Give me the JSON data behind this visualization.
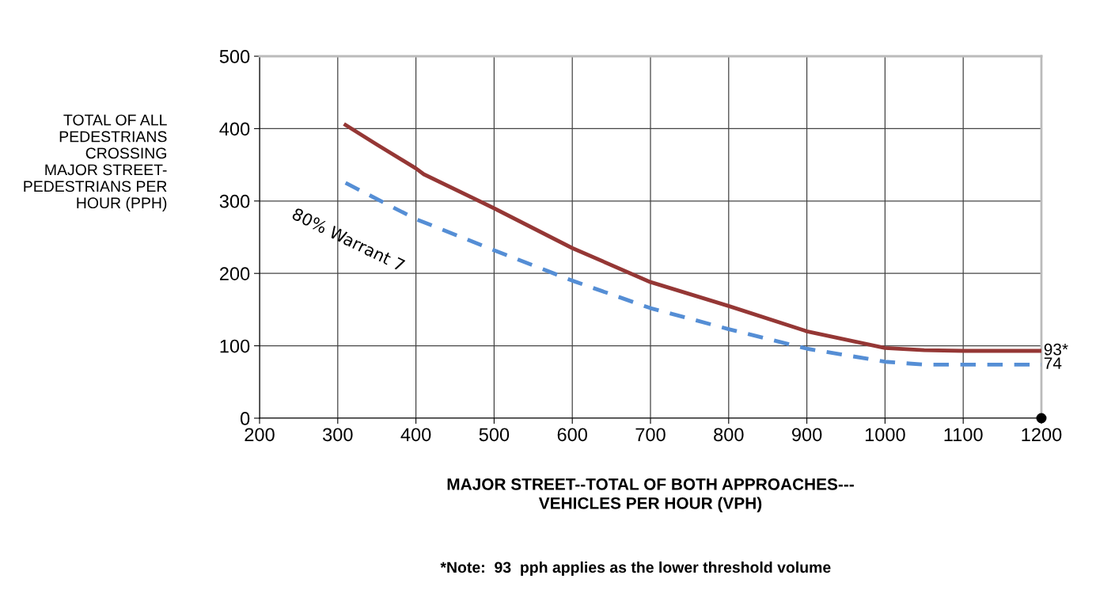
{
  "chart_data": {
    "type": "line",
    "xlabel": "MAJOR STREET--TOTAL OF BOTH APPROACHES---\nVEHICLES PER HOUR (VPH)",
    "ylabel": "TOTAL OF ALL\nPEDESTRIANS\nCROSSING\nMAJOR STREET-\nPEDESTRIANS PER\nHOUR (PPH)",
    "series": [
      {
        "color": "#953735",
        "x": [
          310,
          350,
          400,
          410,
          500,
          600,
          700,
          800,
          900,
          1000,
          1050,
          1100,
          1200
        ],
        "values": [
          405,
          378,
          345,
          337,
          290,
          235,
          188,
          155,
          120,
          97,
          94,
          93,
          93
        ]
      },
      {
        "color": "#558ed5",
        "line_style": "dashed",
        "x": [
          310,
          400,
          500,
          600,
          700,
          800,
          900,
          1000,
          1050,
          1100,
          1200
        ],
        "values": [
          325,
          275,
          232,
          190,
          152,
          123,
          96,
          78,
          74,
          74,
          74
        ]
      },
      {
        "type": "scatter",
        "color": "#000000",
        "x": [
          1200
        ],
        "values": [
          0
        ]
      }
    ],
    "xlim": [
      200,
      1200
    ],
    "xticks": [
      200,
      300,
      400,
      500,
      600,
      700,
      800,
      900,
      1000,
      1100,
      1200
    ],
    "ylim": [
      0,
      500
    ],
    "yticks": [
      0,
      100,
      200,
      300,
      400,
      500
    ],
    "grid": true,
    "annotations": [
      {
        "text": "93*",
        "x": 1200,
        "y": 93
      },
      {
        "text": "74",
        "x": 1200,
        "y": 74
      },
      "80% Warrant 7",
      "*Note:  93  pph applies as the lower threshold volume"
    ]
  }
}
